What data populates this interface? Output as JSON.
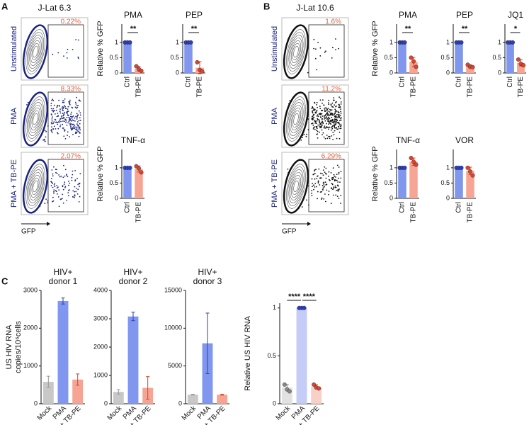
{
  "panel_labels": [
    "A",
    "B",
    "C"
  ],
  "flow": [
    {
      "title": "J-Lat 6.3",
      "x_label": "GFP",
      "dot_color": "#1a237e",
      "gate_color": "#e8603c",
      "plots": [
        {
          "label": "Unstimulated",
          "gate": "0.22%"
        },
        {
          "label": "PMA",
          "gate": "8.33%"
        },
        {
          "label": "PMA + TB-PE",
          "gate": "2.07%"
        }
      ]
    },
    {
      "title": "J-Lat 10.6",
      "x_label": "GFP",
      "dot_color": "#111111",
      "gate_color": "#e8603c",
      "plots": [
        {
          "label": "Unstimulated",
          "gate": "1.6%"
        },
        {
          "label": "PMA",
          "gate": "11.2%"
        },
        {
          "label": "PMA + TB-PE",
          "gate": "6.29%"
        }
      ]
    }
  ],
  "chart_data": [
    {
      "type": "bar",
      "title": [
        "PMA"
      ],
      "ylabel": [
        "Relative % GFP"
      ],
      "categories": [
        "Ctrl",
        "TB-PE"
      ],
      "values": [
        1,
        0.13
      ],
      "errors": [
        0,
        0.08
      ],
      "points": [
        [
          1,
          1,
          1
        ],
        [
          0.22,
          0.13,
          0.07
        ]
      ],
      "colors": [
        "#8096ef",
        "#f6a595"
      ],
      "point_colors": [
        "#2c3ebf",
        "#d8452e"
      ],
      "ylim": [
        0,
        1.6
      ],
      "yticks": [
        0,
        0.5,
        1
      ],
      "significance": [
        {
          "label": "**",
          "from": 0,
          "to": 1
        }
      ]
    },
    {
      "type": "bar",
      "title": [
        "PEP"
      ],
      "categories": [
        "Ctrl",
        "TB-PE"
      ],
      "values": [
        1,
        0.17
      ],
      "errors": [
        0,
        0.2
      ],
      "points": [
        [
          1,
          1,
          1
        ],
        [
          0.35,
          0.1,
          0.05
        ]
      ],
      "colors": [
        "#8096ef",
        "#f6a595"
      ],
      "point_colors": [
        "#2c3ebf",
        "#d8452e"
      ],
      "ylim": [
        0,
        1.6
      ],
      "yticks": [
        0,
        0.5,
        1
      ],
      "significance": [
        {
          "label": "**",
          "from": 0,
          "to": 1
        }
      ]
    },
    {
      "type": "bar",
      "title": [
        "TNF-α"
      ],
      "ylabel": [
        "Relative % GFP"
      ],
      "categories": [
        "Ctrl",
        "TB-PE"
      ],
      "values": [
        1,
        0.96
      ],
      "errors": [
        0,
        0.1
      ],
      "points": [
        [
          1,
          1,
          1
        ],
        [
          1.05,
          0.98,
          0.85
        ]
      ],
      "colors": [
        "#8096ef",
        "#f6a595"
      ],
      "point_colors": [
        "#2c3ebf",
        "#d8452e"
      ],
      "ylim": [
        0,
        1.6
      ],
      "yticks": [
        0,
        0.5,
        1
      ]
    },
    {
      "type": "bar",
      "title": [
        "PMA"
      ],
      "ylabel": [
        "Relative % GFP"
      ],
      "categories": [
        "Ctrl",
        "TB-PE"
      ],
      "values": [
        1,
        0.36
      ],
      "errors": [
        0,
        0.15
      ],
      "points": [
        [
          1,
          1,
          1
        ],
        [
          0.5,
          0.38,
          0.2
        ]
      ],
      "colors": [
        "#8096ef",
        "#f6a595"
      ],
      "point_colors": [
        "#2c3ebf",
        "#d8452e"
      ],
      "ylim": [
        0,
        1.6
      ],
      "yticks": [
        0,
        0.5,
        1
      ],
      "significance": [
        {
          "label": "**",
          "from": 0,
          "to": 1
        }
      ]
    },
    {
      "type": "bar",
      "title": [
        "PEP"
      ],
      "categories": [
        "Ctrl",
        "TB-PE"
      ],
      "values": [
        1,
        0.22
      ],
      "errors": [
        0,
        0.05
      ],
      "points": [
        [
          1,
          1,
          1
        ],
        [
          0.27,
          0.2,
          0.19
        ]
      ],
      "colors": [
        "#8096ef",
        "#f6a595"
      ],
      "point_colors": [
        "#2c3ebf",
        "#d8452e"
      ],
      "ylim": [
        0,
        1.6
      ],
      "yticks": [
        0,
        0.5,
        1
      ],
      "significance": [
        {
          "label": "**",
          "from": 0,
          "to": 1
        }
      ]
    },
    {
      "type": "bar",
      "title": [
        "JQ1"
      ],
      "categories": [
        "Ctrl",
        "TB-PE"
      ],
      "values": [
        1,
        0.33
      ],
      "errors": [
        0,
        0.1
      ],
      "points": [
        [
          1,
          1,
          1
        ],
        [
          0.44,
          0.3,
          0.25
        ]
      ],
      "colors": [
        "#8096ef",
        "#f6a595"
      ],
      "point_colors": [
        "#2c3ebf",
        "#d8452e"
      ],
      "ylim": [
        0,
        1.6
      ],
      "yticks": [
        0,
        0.5,
        1
      ],
      "significance": [
        {
          "label": "*",
          "from": 0,
          "to": 1
        }
      ]
    },
    {
      "type": "bar",
      "title": [
        "TNF-α"
      ],
      "ylabel": [
        "Relative % GFP"
      ],
      "categories": [
        "Ctrl",
        "TB-PE"
      ],
      "values": [
        1,
        1.2
      ],
      "errors": [
        0,
        0.12
      ],
      "points": [
        [
          1,
          1,
          1
        ],
        [
          1.32,
          1.2,
          1.1
        ]
      ],
      "colors": [
        "#8096ef",
        "#f6a595"
      ],
      "point_colors": [
        "#2c3ebf",
        "#d8452e"
      ],
      "ylim": [
        0,
        1.6
      ],
      "yticks": [
        0,
        0.5,
        1
      ]
    },
    {
      "type": "bar",
      "title": [
        "VOR"
      ],
      "categories": [
        "Ctrl",
        "TB-PE"
      ],
      "values": [
        1,
        0.9
      ],
      "errors": [
        0,
        0.12
      ],
      "points": [
        [
          1,
          1,
          1
        ],
        [
          1.0,
          0.88,
          0.75
        ]
      ],
      "colors": [
        "#8096ef",
        "#f6a595"
      ],
      "point_colors": [
        "#2c3ebf",
        "#d8452e"
      ],
      "ylim": [
        0,
        1.6
      ],
      "yticks": [
        0,
        0.5,
        1
      ]
    },
    {
      "type": "bar",
      "title": [
        "HIV+",
        "donor 1"
      ],
      "ylabel": [
        "US HIV RNA",
        "copies/10⁶cells"
      ],
      "categories": [
        "Mock",
        "PMA",
        "PMA + TB-PE"
      ],
      "values": [
        580,
        2720,
        640
      ],
      "errors": [
        150,
        80,
        150
      ],
      "colors": [
        "#c8c8c8",
        "#8096ef",
        "#f6a595"
      ],
      "point_colors": [
        "#9a9a9a",
        "#2c3ebf",
        "#d8452e"
      ],
      "ylim": [
        0,
        3000
      ],
      "yticks": [
        0,
        1000,
        2000,
        3000
      ]
    },
    {
      "type": "bar",
      "title": [
        "HIV+",
        "donor 2"
      ],
      "categories": [
        "Mock",
        "PMA",
        "PMA + TB-PE"
      ],
      "values": [
        420,
        3080,
        560
      ],
      "errors": [
        80,
        150,
        400
      ],
      "colors": [
        "#c8c8c8",
        "#8096ef",
        "#f6a595"
      ],
      "point_colors": [
        "#9a9a9a",
        "#2c3ebf",
        "#d8452e"
      ],
      "ylim": [
        0,
        4000
      ],
      "yticks": [
        0,
        1000,
        2000,
        3000,
        4000
      ]
    },
    {
      "type": "bar",
      "title": [
        "HIV+",
        "donor 3"
      ],
      "categories": [
        "Mock",
        "PMA",
        "PMA + TB-PE"
      ],
      "values": [
        1200,
        8000,
        1200
      ],
      "errors": [
        60,
        4000,
        60
      ],
      "colors": [
        "#c8c8c8",
        "#8096ef",
        "#f6a595"
      ],
      "point_colors": [
        "#9a9a9a",
        "#2c3ebf",
        "#d8452e"
      ],
      "ylim": [
        0,
        15000
      ],
      "yticks": [
        0,
        5000,
        10000,
        15000
      ]
    },
    {
      "type": "bar",
      "ylabel": [
        "Relative US HIV RNA"
      ],
      "categories": [
        "Mock",
        "PMA",
        "PMA + TB-PE"
      ],
      "values": [
        0.17,
        1,
        0.18
      ],
      "errors": [
        0.03,
        0,
        0.02
      ],
      "points": [
        [
          0.2,
          0.15,
          0.13
        ],
        [
          1,
          1,
          1
        ],
        [
          0.2,
          0.17,
          0.16
        ]
      ],
      "colors": [
        "#e2e2e2",
        "#c4ccf7",
        "#f9d0c7"
      ],
      "point_colors": [
        "#888888",
        "#2c3ebf",
        "#d8452e"
      ],
      "ylim": [
        0,
        1.05
      ],
      "yticks": [
        0,
        0.5,
        1
      ],
      "significance": [
        {
          "label": "****",
          "from": 0,
          "to": 1
        },
        {
          "label": "****",
          "from": 1,
          "to": 2
        }
      ]
    }
  ]
}
